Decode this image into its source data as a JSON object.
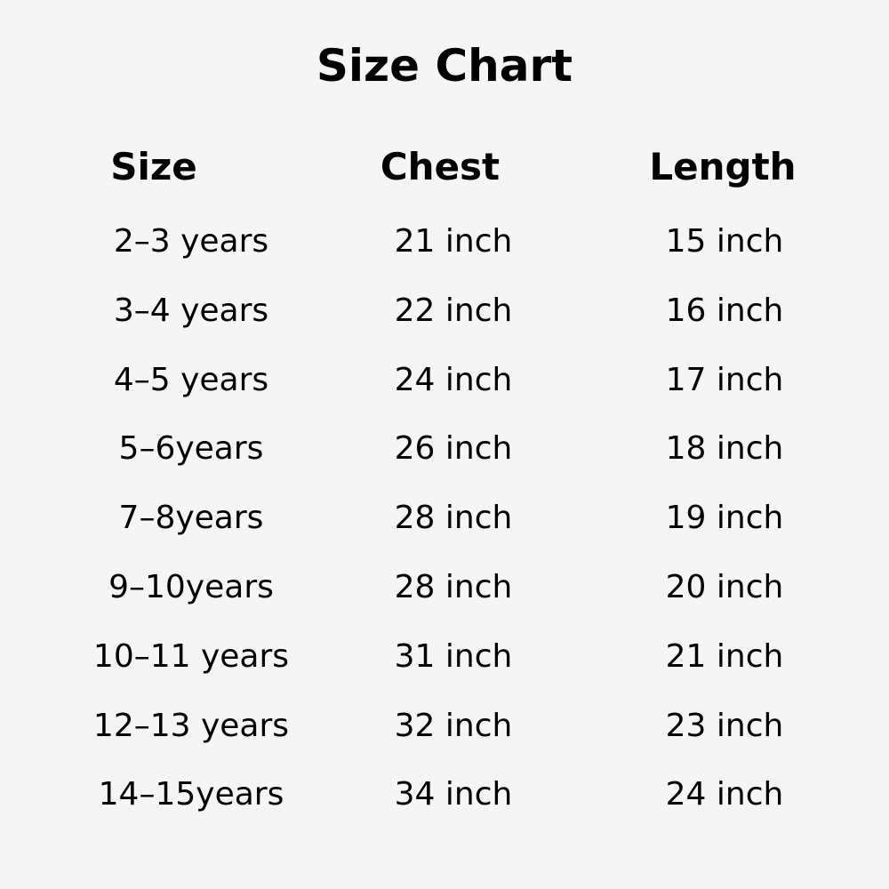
{
  "title": "Size Chart",
  "headers": [
    "Size",
    "Chest",
    "Length"
  ],
  "rows": [
    [
      "2–3 years",
      "21 inch",
      "15 inch"
    ],
    [
      "3–4 years",
      "22 inch",
      "16 inch"
    ],
    [
      "4–5 years",
      "24 inch",
      "17 inch"
    ],
    [
      "5–6years",
      "26 inch",
      "18 inch"
    ],
    [
      "7–8years",
      "28 inch",
      "19 inch"
    ],
    [
      "9–10years",
      "28 inch",
      "20 inch"
    ],
    [
      "10–11 years",
      "31 inch",
      "21 inch"
    ],
    [
      "12–13 years",
      "32 inch",
      "23 inch"
    ],
    [
      "14–15years",
      "34 inch",
      "24 inch"
    ]
  ]
}
